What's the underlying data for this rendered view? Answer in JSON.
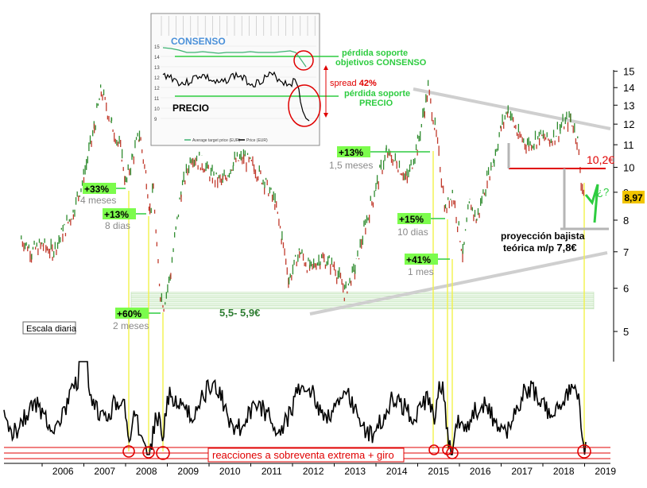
{
  "chart_data": {
    "type": "line",
    "scale": "log",
    "y_ticks": [
      5,
      6,
      7,
      8,
      9,
      10,
      11,
      12,
      13,
      14,
      15
    ],
    "x_ticks": [
      "2006",
      "2007",
      "2008",
      "2009",
      "2010",
      "2011",
      "2012",
      "2013",
      "2014",
      "2015",
      "2016",
      "2017",
      "2018",
      "2019"
    ],
    "price_series": [
      {
        "x": "2005-07",
        "y": 7.4
      },
      {
        "x": "2005-10",
        "y": 7.0
      },
      {
        "x": "2006-01",
        "y": 7.2
      },
      {
        "x": "2006-04",
        "y": 7.0
      },
      {
        "x": "2006-07",
        "y": 7.6
      },
      {
        "x": "2006-10",
        "y": 8.3
      },
      {
        "x": "2007-01",
        "y": 9.6
      },
      {
        "x": "2007-04",
        "y": 11.8
      },
      {
        "x": "2007-06",
        "y": 13.8
      },
      {
        "x": "2007-09",
        "y": 12.0
      },
      {
        "x": "2007-12",
        "y": 10.5
      },
      {
        "x": "2008-01",
        "y": 9.3
      },
      {
        "x": "2008-03",
        "y": 10.4
      },
      {
        "x": "2008-05",
        "y": 11.5
      },
      {
        "x": "2008-07",
        "y": 9.5
      },
      {
        "x": "2008-08",
        "y": 8.3
      },
      {
        "x": "2008-09",
        "y": 9.1
      },
      {
        "x": "2008-10",
        "y": 7.0
      },
      {
        "x": "2008-11",
        "y": 5.9
      },
      {
        "x": "2008-12",
        "y": 5.6
      },
      {
        "x": "2009-02",
        "y": 6.4
      },
      {
        "x": "2009-05",
        "y": 9.0
      },
      {
        "x": "2009-08",
        "y": 10.5
      },
      {
        "x": "2009-11",
        "y": 10.2
      },
      {
        "x": "2010-02",
        "y": 9.6
      },
      {
        "x": "2010-05",
        "y": 9.4
      },
      {
        "x": "2010-08",
        "y": 10.2
      },
      {
        "x": "2010-11",
        "y": 10.4
      },
      {
        "x": "2011-02",
        "y": 10.0
      },
      {
        "x": "2011-05",
        "y": 9.4
      },
      {
        "x": "2011-08",
        "y": 8.6
      },
      {
        "x": "2011-10",
        "y": 7.4
      },
      {
        "x": "2011-12",
        "y": 6.2
      },
      {
        "x": "2012-03",
        "y": 7.0
      },
      {
        "x": "2012-06",
        "y": 6.5
      },
      {
        "x": "2012-09",
        "y": 6.8
      },
      {
        "x": "2013-01",
        "y": 6.6
      },
      {
        "x": "2013-04",
        "y": 5.9
      },
      {
        "x": "2013-07",
        "y": 6.5
      },
      {
        "x": "2013-10",
        "y": 7.8
      },
      {
        "x": "2014-01",
        "y": 9.2
      },
      {
        "x": "2014-04",
        "y": 10.6
      },
      {
        "x": "2014-07",
        "y": 10.2
      },
      {
        "x": "2014-10",
        "y": 9.5
      },
      {
        "x": "2015-01",
        "y": 11.0
      },
      {
        "x": "2015-03",
        "y": 12.8
      },
      {
        "x": "2015-04",
        "y": 13.9
      },
      {
        "x": "2015-06",
        "y": 11.8
      },
      {
        "x": "2015-08",
        "y": 9.4
      },
      {
        "x": "2015-09",
        "y": 8.3
      },
      {
        "x": "2015-11",
        "y": 9.0
      },
      {
        "x": "2016-02",
        "y": 6.9
      },
      {
        "x": "2016-04",
        "y": 8.6
      },
      {
        "x": "2016-06",
        "y": 8.0
      },
      {
        "x": "2016-09",
        "y": 9.5
      },
      {
        "x": "2016-11",
        "y": 10.4
      },
      {
        "x": "2017-01",
        "y": 11.8
      },
      {
        "x": "2017-03",
        "y": 12.8
      },
      {
        "x": "2017-06",
        "y": 11.4
      },
      {
        "x": "2017-09",
        "y": 11.0
      },
      {
        "x": "2017-12",
        "y": 11.4
      },
      {
        "x": "2018-03",
        "y": 11.2
      },
      {
        "x": "2018-06",
        "y": 11.8
      },
      {
        "x": "2018-09",
        "y": 12.3
      },
      {
        "x": "2018-11",
        "y": 11.2
      },
      {
        "x": "2018-12",
        "y": 9.4
      },
      {
        "x": "2019-01",
        "y": 8.97
      }
    ],
    "current_price": "8,97",
    "annotations": [
      {
        "label": "+33%",
        "sub": "4 meses"
      },
      {
        "label": "+13%",
        "sub": "8 dias"
      },
      {
        "label": "+60%",
        "sub": "2 meses"
      },
      {
        "label": "+13%",
        "sub": "1,5 meses"
      },
      {
        "label": "+15%",
        "sub": "10 dias"
      },
      {
        "label": "+41%",
        "sub": "1 mes"
      }
    ],
    "support_zone": {
      "label": "5,5- 5,9€",
      "low": 5.5,
      "high": 5.9
    },
    "support_level": {
      "label": "10,2€",
      "value": 10.2
    },
    "target": {
      "line1": "proyección bajista",
      "line2_prefix": "teórica m/p ",
      "line2_value": "7,8€",
      "value": 7.8
    },
    "question_mark": "¿?",
    "scale_label": "Escala diaria",
    "oscillator_label": "reacciones a sobreventa extrema + giro",
    "inset": {
      "consensus_title": "CONSENSO",
      "price_title": "PRECIO",
      "consensus_y_ticks": [
        "15",
        "14",
        "13",
        "12"
      ],
      "price_y_ticks": [
        "12",
        "11",
        "10",
        "9"
      ],
      "legend_1": "Average target price (EUR)",
      "legend_2": "Price (EUR)",
      "notes": {
        "consensus_line1": "pérdida soporte",
        "consensus_line2": "objetivos CONSENSO",
        "spread_label": "spread ",
        "spread_value": "42%",
        "price_line1": "pérdida soporte",
        "price_line2": "PRECIO"
      }
    },
    "colors": {
      "price_up": "#2e8b2e",
      "price_down": "#c0392b",
      "highlight_green": "#2ecc40",
      "support_red": "#e00000",
      "guide_yellow": "#f2f24a",
      "trend_gray": "#c8c8c8",
      "consensus_blue": "#4a90d9"
    }
  }
}
